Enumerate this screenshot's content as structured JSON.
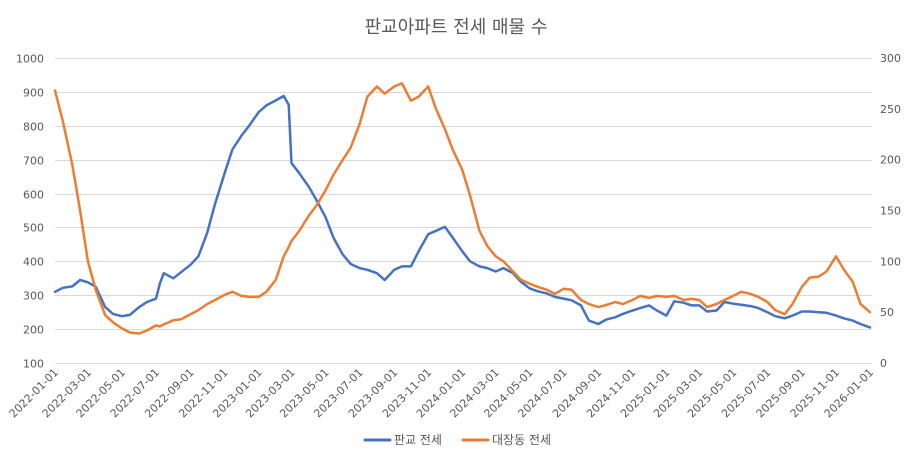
{
  "chart_data": {
    "type": "line",
    "title": "판교아파트 전세 매물 수",
    "legend": "bottom",
    "grid": true,
    "x_range": [
      "2022-01-01",
      "2026-01-01"
    ],
    "x_tick_labels": [
      "2022-01-01",
      "2022-03-01",
      "2022-05-01",
      "2022-07-01",
      "2022-09-01",
      "2022-11-01",
      "2023-01-01",
      "2023-03-01",
      "2023-05-01",
      "2023-07-01",
      "2023-09-01",
      "2023-11-01",
      "2024-01-01",
      "2024-03-01",
      "2024-05-01",
      "2024-07-01",
      "2024-09-01",
      "2024-11-01",
      "2025-01-01",
      "2025-03-01",
      "2025-05-01",
      "2025-07-01",
      "2025-09-01",
      "2025-11-01",
      "2026-01-01"
    ],
    "y_left": {
      "min": 100,
      "max": 1000,
      "tick_labels": [
        "100",
        "200",
        "300",
        "400",
        "500",
        "600",
        "700",
        "800",
        "900",
        "1000"
      ]
    },
    "y_right": {
      "min": 0,
      "max": 300,
      "tick_labels": [
        "0",
        "50",
        "100",
        "150",
        "200",
        "250",
        "300"
      ]
    },
    "x": [
      "2022-01-01",
      "2022-01-15",
      "2022-02-01",
      "2022-02-15",
      "2022-03-01",
      "2022-03-15",
      "2022-04-01",
      "2022-04-15",
      "2022-05-01",
      "2022-05-15",
      "2022-06-01",
      "2022-06-15",
      "2022-07-01",
      "2022-07-08",
      "2022-07-15",
      "2022-08-01",
      "2022-08-15",
      "2022-09-01",
      "2022-09-15",
      "2022-10-01",
      "2022-10-15",
      "2022-11-01",
      "2022-11-15",
      "2022-12-01",
      "2022-12-15",
      "2023-01-01",
      "2023-01-15",
      "2023-02-01",
      "2023-02-15",
      "2023-02-24",
      "2023-03-01",
      "2023-03-15",
      "2023-04-01",
      "2023-04-15",
      "2023-05-01",
      "2023-05-15",
      "2023-06-01",
      "2023-06-15",
      "2023-07-01",
      "2023-07-15",
      "2023-08-01",
      "2023-08-15",
      "2023-09-01",
      "2023-09-15",
      "2023-10-01",
      "2023-10-15",
      "2023-11-01",
      "2023-11-15",
      "2023-12-01",
      "2023-12-15",
      "2024-01-01",
      "2024-01-15",
      "2024-02-01",
      "2024-02-15",
      "2024-03-01",
      "2024-03-15",
      "2024-04-01",
      "2024-04-15",
      "2024-05-01",
      "2024-05-15",
      "2024-06-01",
      "2024-06-15",
      "2024-07-01",
      "2024-07-15",
      "2024-08-01",
      "2024-08-15",
      "2024-09-01",
      "2024-09-15",
      "2024-10-01",
      "2024-10-15",
      "2024-11-01",
      "2024-11-15",
      "2024-12-01",
      "2024-12-15",
      "2025-01-01",
      "2025-01-15",
      "2025-02-01",
      "2025-02-15",
      "2025-03-01",
      "2025-03-15",
      "2025-04-01",
      "2025-04-15",
      "2025-05-01",
      "2025-05-15",
      "2025-06-01",
      "2025-06-15",
      "2025-07-01",
      "2025-07-15",
      "2025-08-01",
      "2025-08-15",
      "2025-09-01",
      "2025-09-15",
      "2025-10-01",
      "2025-10-15",
      "2025-11-01",
      "2025-11-15",
      "2025-12-01",
      "2025-12-15",
      "2026-01-01"
    ],
    "series": [
      {
        "name": "판교 전세",
        "y_axis": "left",
        "color": "#4472C4",
        "values": [
          310,
          322,
          326,
          345,
          338,
          325,
          265,
          245,
          238,
          242,
          265,
          280,
          290,
          335,
          365,
          350,
          368,
          390,
          415,
          485,
          570,
          660,
          730,
          770,
          800,
          840,
          860,
          875,
          888,
          862,
          690,
          660,
          620,
          580,
          530,
          470,
          420,
          392,
          380,
          375,
          365,
          345,
          375,
          385,
          385,
          430,
          480,
          490,
          502,
          470,
          430,
          400,
          385,
          380,
          370,
          380,
          365,
          340,
          320,
          312,
          305,
          295,
          290,
          285,
          270,
          225,
          215,
          228,
          235,
          245,
          255,
          262,
          270,
          255,
          240,
          282,
          278,
          270,
          270,
          252,
          255,
          280,
          275,
          272,
          268,
          262,
          250,
          238,
          232,
          240,
          252,
          252,
          250,
          248,
          240,
          232,
          225,
          215,
          205
        ]
      },
      {
        "name": "대장동 전세",
        "y_axis": "right",
        "color": "#ED7D31",
        "values": [
          268,
          238,
          195,
          150,
          100,
          72,
          47,
          40,
          34,
          30,
          29,
          32,
          37,
          36,
          38,
          42,
          43,
          48,
          52,
          58,
          62,
          67,
          70,
          66,
          65,
          65,
          70,
          82,
          105,
          114,
          120,
          130,
          145,
          155,
          170,
          185,
          200,
          212,
          235,
          262,
          272,
          265,
          272,
          275,
          258,
          262,
          272,
          250,
          230,
          210,
          190,
          165,
          130,
          115,
          105,
          100,
          90,
          82,
          78,
          75,
          72,
          68,
          73,
          72,
          62,
          58,
          55,
          57,
          60,
          58,
          62,
          66,
          64,
          66,
          65,
          66,
          62,
          63,
          62,
          55,
          58,
          62,
          66,
          70,
          68,
          65,
          60,
          52,
          48,
          58,
          75,
          84,
          85,
          90,
          105,
          92,
          80,
          58,
          50
        ]
      }
    ]
  }
}
